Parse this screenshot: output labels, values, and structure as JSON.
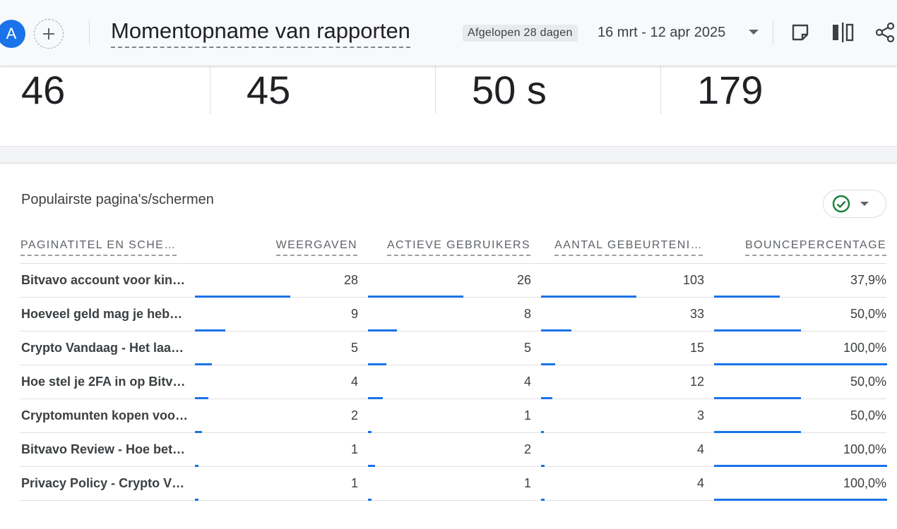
{
  "header": {
    "avatar_letter": "A",
    "title": "Momentopname van rapporten",
    "range_label": "Afgelopen 28 dagen",
    "date_range": "16 mrt - 12 apr 2025",
    "icons": [
      "add-comparison-icon",
      "note-icon",
      "compare-columns-icon",
      "share-icon"
    ]
  },
  "metrics": [
    {
      "value": "46"
    },
    {
      "value": "45"
    },
    {
      "value": "50 s"
    },
    {
      "value": "179"
    }
  ],
  "card": {
    "title": "Populairste pagina's/schermen",
    "status_icon": "check-circle-icon",
    "columns": [
      "PAGINATITEL EN SCHE…",
      "WEERGAVEN",
      "ACTIEVE GEBRUIKERS",
      "AANTAL GEBEURTENI…",
      "BOUNCEPERCENTAGE"
    ],
    "rows": [
      {
        "title": "Bitvavo account voor kin…",
        "views": "28",
        "users": "26",
        "events": "103",
        "bounce": "37,9%"
      },
      {
        "title": "Hoeveel geld mag je heb…",
        "views": "9",
        "users": "8",
        "events": "33",
        "bounce": "50,0%"
      },
      {
        "title": "Crypto Vandaag - Het laa…",
        "views": "5",
        "users": "5",
        "events": "15",
        "bounce": "100,0%"
      },
      {
        "title": "Hoe stel je 2FA in op Bitv…",
        "views": "4",
        "users": "4",
        "events": "12",
        "bounce": "50,0%"
      },
      {
        "title": "Cryptomunten kopen voo…",
        "views": "2",
        "users": "1",
        "events": "3",
        "bounce": "50,0%"
      },
      {
        "title": "Bitvavo Review - Hoe bet…",
        "views": "1",
        "users": "2",
        "events": "4",
        "bounce": "100,0%"
      },
      {
        "title": "Privacy Policy - Crypto V…",
        "views": "1",
        "users": "1",
        "events": "4",
        "bounce": "100,0%"
      }
    ]
  },
  "colors": {
    "accent": "#1a73e8",
    "success": "#188038"
  }
}
